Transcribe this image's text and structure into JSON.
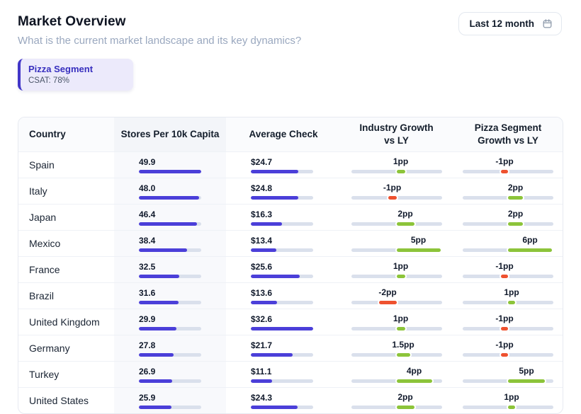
{
  "colors": {
    "purple_bar": "#4B3FD9",
    "positive_green": "#8CC43A",
    "negative_red": "#EE512F",
    "bar_track": "#DAE0EC",
    "card_bg": "#ECEAFB",
    "card_accent": "#4236C8",
    "card_title": "#372FBE"
  },
  "header": {
    "title": "Market Overview",
    "subtitle": "What is the current market landscape and its key dynamics?",
    "period_button": {
      "label": "Last 12 month",
      "icon": "calendar-icon"
    }
  },
  "segment_card": {
    "title": "Pizza Segment",
    "csat": "CSAT: 78%"
  },
  "table": {
    "columns": [
      {
        "label": "Country"
      },
      {
        "label": "Stores Per 10k Capita"
      },
      {
        "label": "Average Check"
      },
      {
        "line1": "Industry Growth",
        "line2": "vs LY"
      },
      {
        "line1": "Pizza Segment",
        "line2": "Growth vs LY"
      }
    ],
    "scales": {
      "stores_max": 49.9,
      "check_max": 32.6,
      "industry_abs_max": 5,
      "pizza_abs_max": 6
    },
    "rows": [
      {
        "country": "Spain",
        "stores": 49.9,
        "stores_label": "49.9",
        "check": 24.7,
        "check_label": "$24.7",
        "industry": 1,
        "industry_label": "1pp",
        "pizza": -1,
        "pizza_label": "-1pp"
      },
      {
        "country": "Italy",
        "stores": 48.0,
        "stores_label": "48.0",
        "check": 24.8,
        "check_label": "$24.8",
        "industry": -1,
        "industry_label": "-1pp",
        "pizza": 2,
        "pizza_label": "2pp"
      },
      {
        "country": "Japan",
        "stores": 46.4,
        "stores_label": "46.4",
        "check": 16.3,
        "check_label": "$16.3",
        "industry": 2,
        "industry_label": "2pp",
        "pizza": 2,
        "pizza_label": "2pp"
      },
      {
        "country": "Mexico",
        "stores": 38.4,
        "stores_label": "38.4",
        "check": 13.4,
        "check_label": "$13.4",
        "industry": 5,
        "industry_label": "5pp",
        "pizza": 6,
        "pizza_label": "6pp"
      },
      {
        "country": "France",
        "stores": 32.5,
        "stores_label": "32.5",
        "check": 25.6,
        "check_label": "$25.6",
        "industry": 1,
        "industry_label": "1pp",
        "pizza": -1,
        "pizza_label": "-1pp"
      },
      {
        "country": "Brazil",
        "stores": 31.6,
        "stores_label": "31.6",
        "check": 13.6,
        "check_label": "$13.6",
        "industry": -2,
        "industry_label": "-2pp",
        "pizza": 1,
        "pizza_label": "1pp"
      },
      {
        "country": "United Kingdom",
        "stores": 29.9,
        "stores_label": "29.9",
        "check": 32.6,
        "check_label": "$32.6",
        "industry": 1,
        "industry_label": "1pp",
        "pizza": -1,
        "pizza_label": "-1pp"
      },
      {
        "country": "Germany",
        "stores": 27.8,
        "stores_label": "27.8",
        "check": 21.7,
        "check_label": "$21.7",
        "industry": 1.5,
        "industry_label": "1.5pp",
        "pizza": -1,
        "pizza_label": "-1pp"
      },
      {
        "country": "Turkey",
        "stores": 26.9,
        "stores_label": "26.9",
        "check": 11.1,
        "check_label": "$11.1",
        "industry": 4,
        "industry_label": "4pp",
        "pizza": 5,
        "pizza_label": "5pp"
      },
      {
        "country": "United States",
        "stores": 25.9,
        "stores_label": "25.9",
        "check": 24.3,
        "check_label": "$24.3",
        "industry": 2,
        "industry_label": "2pp",
        "pizza": 1,
        "pizza_label": "1pp"
      }
    ]
  }
}
